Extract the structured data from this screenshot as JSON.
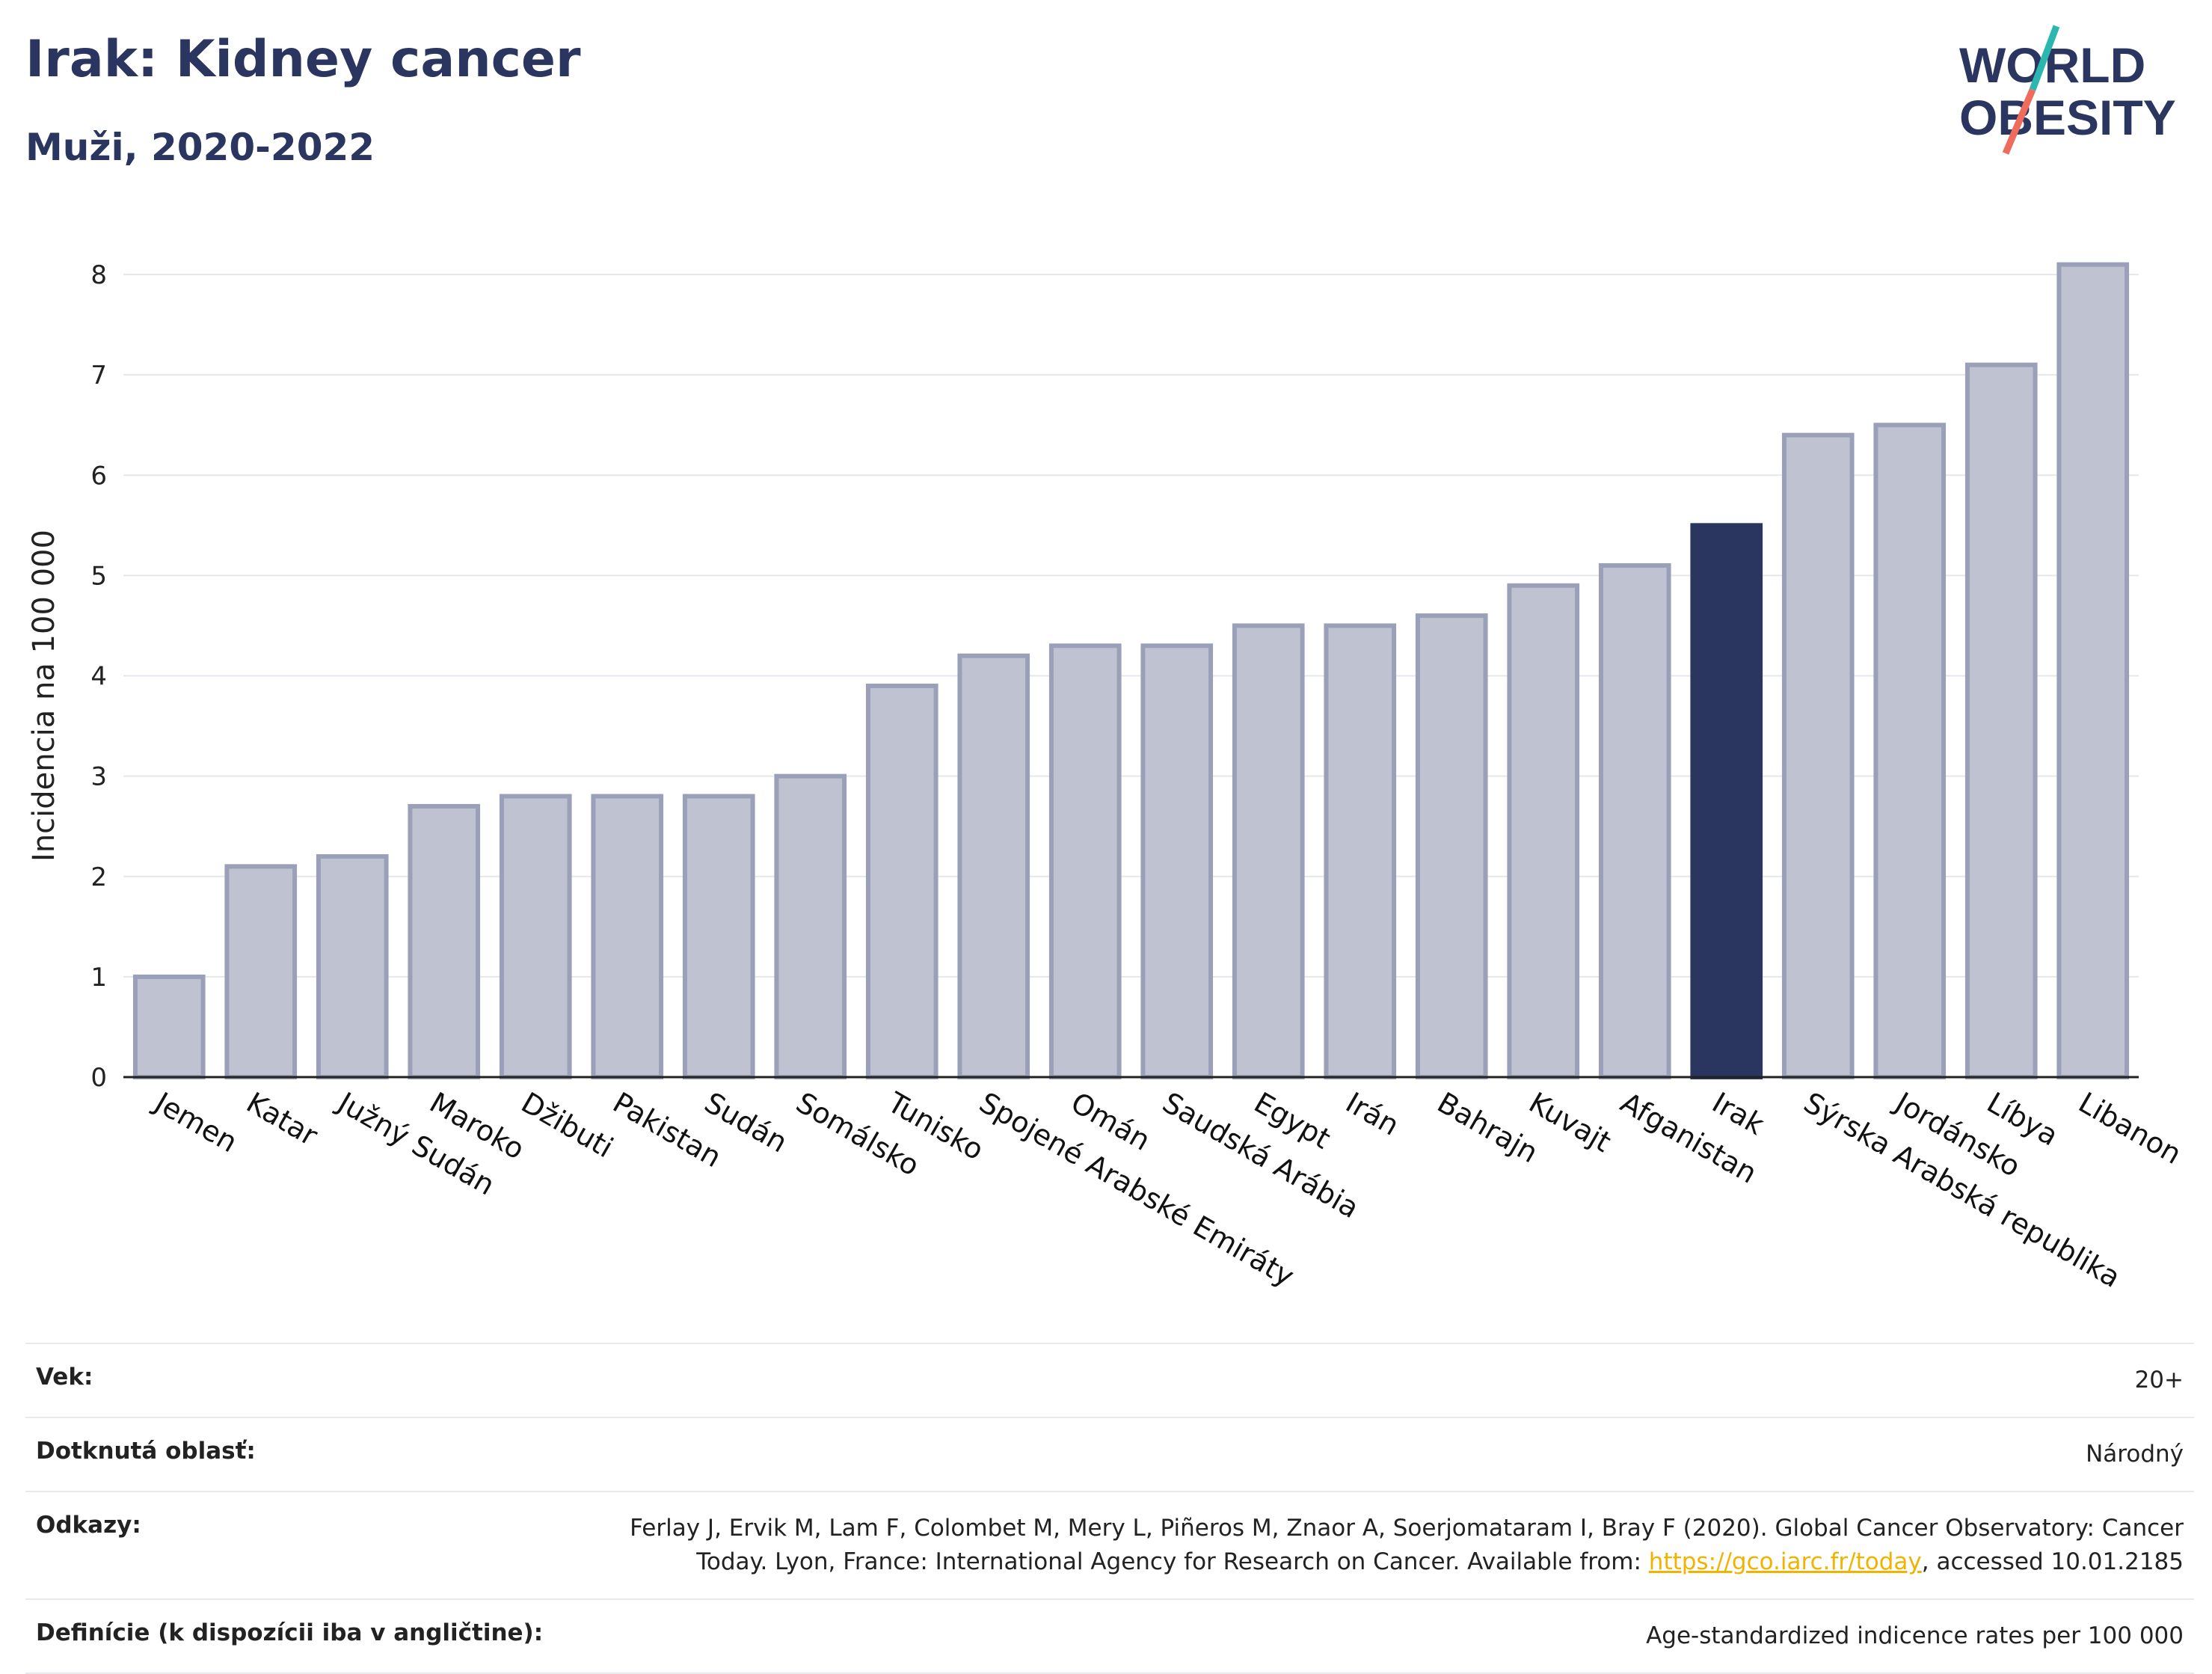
{
  "header": {
    "title": "Irak: Kidney cancer",
    "subtitle": "Muži, 2020-2022"
  },
  "logo": {
    "line1": "WORLD",
    "line2": "OBESITY",
    "accent_top": "#2bb7b0",
    "accent_bottom": "#ef6b5b",
    "text_color": "#2a3660"
  },
  "colors": {
    "bar": "#bfc2d0",
    "bar_stroke": "#9aa0b8",
    "highlight": "#2a3660",
    "grid": "#e6e7ec",
    "axis": "#222222"
  },
  "chart_data": {
    "type": "bar",
    "ylabel": "Incidencia na 100 000",
    "ylim": [
      0,
      8.5
    ],
    "yticks": [
      0,
      1,
      2,
      3,
      4,
      5,
      6,
      7,
      8
    ],
    "highlight": "Irak",
    "categories": [
      "Jemen",
      "Katar",
      "Južný Sudán",
      "Maroko",
      "Džibuti",
      "Pakistan",
      "Sudán",
      "Somálsko",
      "Tunisko",
      "Spojené Arabské Emiráty",
      "Omán",
      "Saudská Arábia",
      "Egypt",
      "Irán",
      "Bahrajn",
      "Kuvajt",
      "Afganistan",
      "Irak",
      "Sýrska Arabská republika",
      "Jordánsko",
      "Líbya",
      "Libanon"
    ],
    "values": [
      1.0,
      2.1,
      2.2,
      2.7,
      2.8,
      2.8,
      2.8,
      3.0,
      3.9,
      4.2,
      4.3,
      4.3,
      4.5,
      4.5,
      4.6,
      4.9,
      5.1,
      5.5,
      6.4,
      6.5,
      7.1,
      8.1
    ],
    "grid": true,
    "legend": "none"
  },
  "meta": {
    "age_label": "Vek:",
    "age_value": "20+",
    "area_label": "Dotknutá oblasť:",
    "area_value": "Národný",
    "refs_label": "Odkazy:",
    "refs_value_line1": "Ferlay J, Ervik M, Lam F, Colombet M, Mery L, Piñeros M, Znaor A, Soerjomataram I, Bray F (2020). Global Cancer Observatory: Cancer",
    "refs_value_line2_pre": "Today. Lyon, France: International Agency for Research on Cancer. Available from: ",
    "refs_link": "https://gco.iarc.fr/today",
    "refs_value_line2_post": ", accessed 10.01.2185",
    "def_label": "Definície (k dispozícii iba v angličtine):",
    "def_value": "Age-standardized indicence rates per 100 000"
  }
}
